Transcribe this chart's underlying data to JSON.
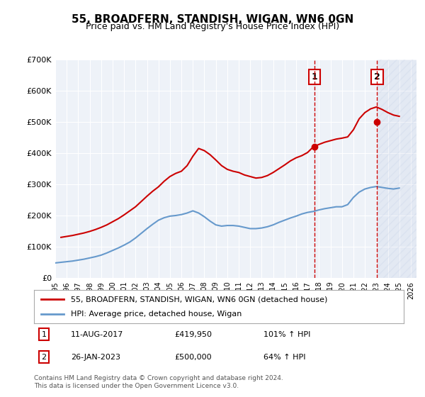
{
  "title": "55, BROADFERN, STANDISH, WIGAN, WN6 0GN",
  "subtitle": "Price paid vs. HM Land Registry's House Price Index (HPI)",
  "ylabel_ticks": [
    "£0",
    "£100K",
    "£200K",
    "£300K",
    "£400K",
    "£500K",
    "£600K",
    "£700K"
  ],
  "ytick_values": [
    0,
    100000,
    200000,
    300000,
    400000,
    500000,
    600000,
    700000
  ],
  "ylim": [
    0,
    700000
  ],
  "xlim_start": 1995,
  "xlim_end": 2026.5,
  "xticks": [
    1995,
    1996,
    1997,
    1998,
    1999,
    2000,
    2001,
    2002,
    2003,
    2004,
    2005,
    2006,
    2007,
    2008,
    2009,
    2010,
    2011,
    2012,
    2013,
    2014,
    2015,
    2016,
    2017,
    2018,
    2019,
    2020,
    2021,
    2022,
    2023,
    2024,
    2025,
    2026
  ],
  "red_line_color": "#cc0000",
  "blue_line_color": "#6699cc",
  "sale1_x": 2017.61,
  "sale1_y": 419950,
  "sale2_x": 2023.07,
  "sale2_y": 500000,
  "legend_label_red": "55, BROADFERN, STANDISH, WIGAN, WN6 0GN (detached house)",
  "legend_label_blue": "HPI: Average price, detached house, Wigan",
  "note1_label": "1",
  "note1_date": "11-AUG-2017",
  "note1_price": "£419,950",
  "note1_hpi": "101% ↑ HPI",
  "note2_label": "2",
  "note2_date": "26-JAN-2023",
  "note2_price": "£500,000",
  "note2_hpi": "64% ↑ HPI",
  "footer": "Contains HM Land Registry data © Crown copyright and database right 2024.\nThis data is licensed under the Open Government Licence v3.0.",
  "bg_color": "#eef2f8",
  "plot_bg_color": "#eef2f8",
  "hatch_color": "#dddddd",
  "hpi_data_x": [
    1995,
    1995.5,
    1996,
    1996.5,
    1997,
    1997.5,
    1998,
    1998.5,
    1999,
    1999.5,
    2000,
    2000.5,
    2001,
    2001.5,
    2002,
    2002.5,
    2003,
    2003.5,
    2004,
    2004.5,
    2005,
    2005.5,
    2006,
    2006.5,
    2007,
    2007.5,
    2008,
    2008.5,
    2009,
    2009.5,
    2010,
    2010.5,
    2011,
    2011.5,
    2012,
    2012.5,
    2013,
    2013.5,
    2014,
    2014.5,
    2015,
    2015.5,
    2016,
    2016.5,
    2017,
    2017.5,
    2018,
    2018.5,
    2019,
    2019.5,
    2020,
    2020.5,
    2021,
    2021.5,
    2022,
    2022.5,
    2023,
    2023.5,
    2024,
    2024.5,
    2025
  ],
  "hpi_data_y": [
    48000,
    50000,
    52000,
    54000,
    57000,
    60000,
    64000,
    68000,
    73000,
    80000,
    88000,
    96000,
    105000,
    115000,
    128000,
    143000,
    158000,
    172000,
    185000,
    193000,
    198000,
    200000,
    203000,
    208000,
    215000,
    208000,
    196000,
    182000,
    170000,
    166000,
    168000,
    168000,
    166000,
    162000,
    158000,
    158000,
    160000,
    164000,
    170000,
    178000,
    185000,
    192000,
    198000,
    205000,
    210000,
    213000,
    218000,
    222000,
    225000,
    228000,
    228000,
    235000,
    258000,
    275000,
    285000,
    290000,
    293000,
    290000,
    287000,
    285000,
    288000
  ],
  "red_data_x": [
    1995.5,
    1996,
    1996.5,
    1997,
    1997.5,
    1998,
    1998.5,
    1999,
    1999.5,
    2000,
    2000.5,
    2001,
    2001.5,
    2002,
    2002.5,
    2003,
    2003.5,
    2004,
    2004.5,
    2005,
    2005.5,
    2006,
    2006.5,
    2007,
    2007.5,
    2008,
    2008.5,
    2009,
    2009.5,
    2010,
    2010.5,
    2011,
    2011.5,
    2012,
    2012.5,
    2013,
    2013.5,
    2014,
    2014.5,
    2015,
    2015.5,
    2016,
    2016.5,
    2017,
    2017.5,
    2018,
    2018.5,
    2019,
    2019.5,
    2020,
    2020.5,
    2021,
    2021.5,
    2022,
    2022.5,
    2023,
    2023.5,
    2024,
    2024.5,
    2025
  ],
  "red_data_y": [
    130000,
    133000,
    136000,
    140000,
    144000,
    149000,
    155000,
    162000,
    170000,
    180000,
    190000,
    202000,
    215000,
    228000,
    245000,
    262000,
    278000,
    292000,
    310000,
    325000,
    335000,
    342000,
    360000,
    390000,
    415000,
    408000,
    395000,
    378000,
    360000,
    348000,
    342000,
    338000,
    330000,
    325000,
    320000,
    322000,
    328000,
    338000,
    350000,
    362000,
    375000,
    385000,
    392000,
    402000,
    420000,
    428000,
    435000,
    440000,
    445000,
    448000,
    452000,
    475000,
    510000,
    530000,
    542000,
    548000,
    540000,
    530000,
    522000,
    518000
  ]
}
